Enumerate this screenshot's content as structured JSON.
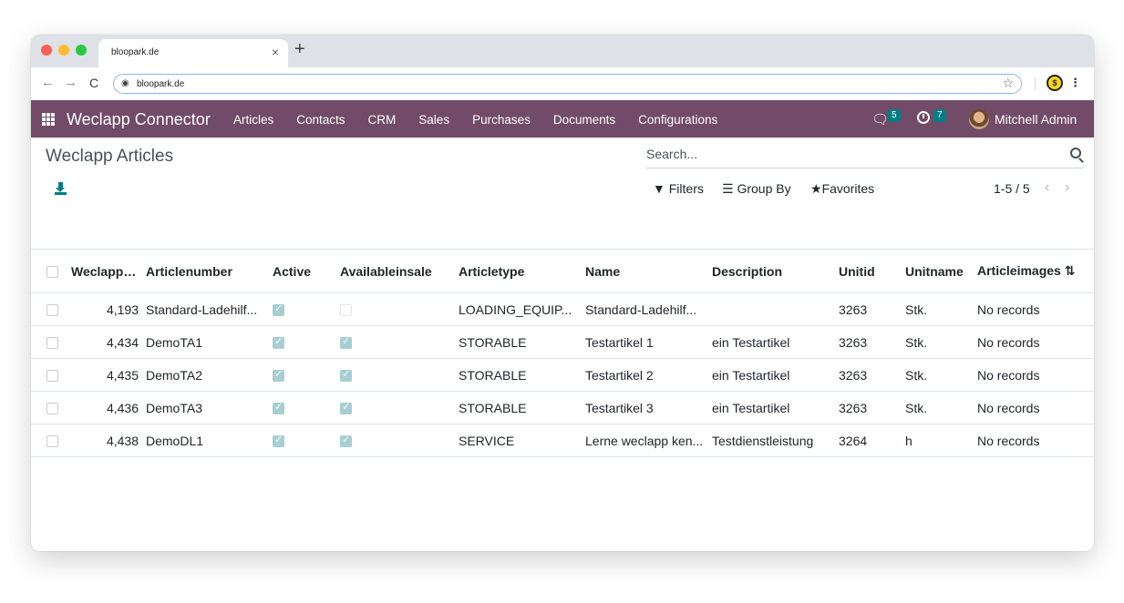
{
  "browser": {
    "tab_title": "bloopark.de",
    "tab_close": "×",
    "new_tab": "+",
    "url": "bloopark.de",
    "back": "←",
    "forward": "→",
    "reload": "C",
    "bookmark": "☆",
    "menu": "⋮"
  },
  "navbar": {
    "brand": "Weclapp Connector",
    "menu": [
      "Articles",
      "Contacts",
      "CRM",
      "Sales",
      "Purchases",
      "Documents",
      "Configurations"
    ],
    "messages_count": "5",
    "activities_count": "7",
    "user": "Mitchell Admin"
  },
  "control_panel": {
    "title": "Weclapp Articles",
    "search_placeholder": "Search...",
    "filters_label": "Filters",
    "groupby_label": "Group By",
    "favorites_label": "Favorites",
    "pager": "1-5 / 5",
    "prev": "‹",
    "next": "›"
  },
  "table": {
    "headers": [
      "Weclapp ID",
      "Articlenumber",
      "Active",
      "Availableinsale",
      "Articletype",
      "Name",
      "Description",
      "Unitid",
      "Unitname",
      "Articleimages"
    ],
    "rows": [
      {
        "id": "4,193",
        "number": "Standard-Ladehilf...",
        "active": true,
        "available": false,
        "type": "LOADING_EQUIP...",
        "name": "Standard-Ladehilf...",
        "description": "",
        "unitid": "3263",
        "unitname": "Stk.",
        "images": "No records"
      },
      {
        "id": "4,434",
        "number": "DemoTA1",
        "active": true,
        "available": true,
        "type": "STORABLE",
        "name": "Testartikel 1",
        "description": "ein Testartikel",
        "unitid": "3263",
        "unitname": "Stk.",
        "images": "No records"
      },
      {
        "id": "4,435",
        "number": "DemoTA2",
        "active": true,
        "available": true,
        "type": "STORABLE",
        "name": "Testartikel 2",
        "description": "ein Testartikel",
        "unitid": "3263",
        "unitname": "Stk.",
        "images": "No records"
      },
      {
        "id": "4,436",
        "number": "DemoTA3",
        "active": true,
        "available": true,
        "type": "STORABLE",
        "name": "Testartikel 3",
        "description": "ein Testartikel",
        "unitid": "3263",
        "unitname": "Stk.",
        "images": "No records"
      },
      {
        "id": "4,438",
        "number": "DemoDL1",
        "active": true,
        "available": true,
        "type": "SERVICE",
        "name": "Lerne weclapp ken...",
        "description": "Testdienstleistung",
        "unitid": "3264",
        "unitname": "h",
        "images": "No records"
      }
    ]
  },
  "colors": {
    "navbar": "#714b67",
    "badge": "#017e84",
    "checkbox_checked": "#a7cfd2"
  },
  "icons": {
    "apps": "apps-grid-icon",
    "chat": "chat-icon",
    "clock": "clock-icon",
    "download": "download-icon",
    "search": "search-icon",
    "filter": "filter-icon",
    "group": "layers-icon",
    "favorite": "star-icon",
    "optional_columns": "sliders-icon"
  }
}
